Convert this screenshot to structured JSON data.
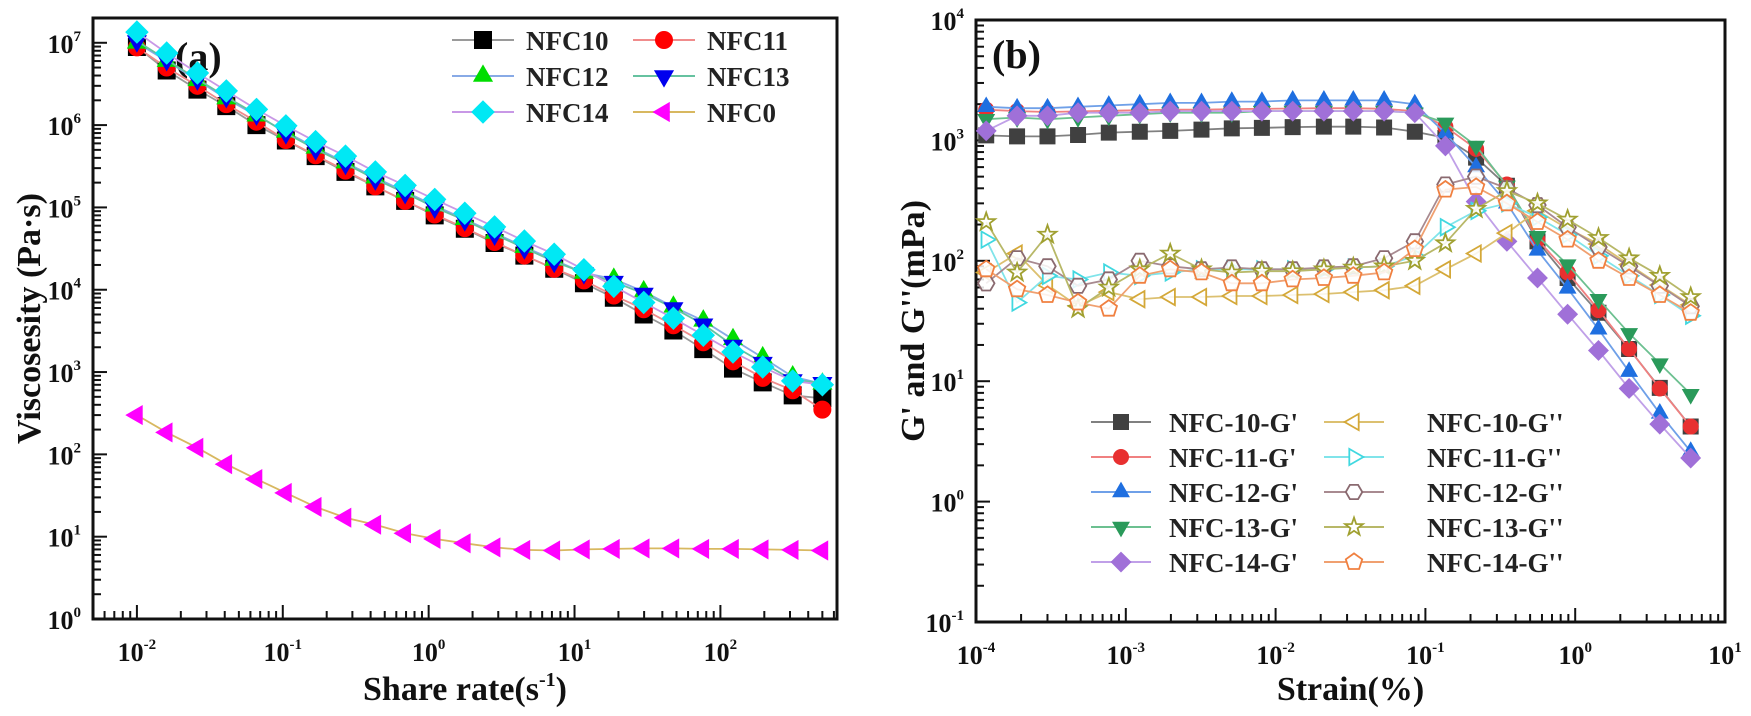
{
  "chart_data": [
    {
      "type": "line",
      "panel_label": "(a)",
      "xlabel": {
        "main": "Share rate(s",
        "sup": "-1",
        "end": ")"
      },
      "ylabel": "Viscosesity (Pa·s)",
      "xscale": "log",
      "yscale": "log",
      "xlim": [
        0.005,
        630
      ],
      "ylim": [
        1,
        20000000
      ],
      "x_ticks": [
        {
          "base": "10",
          "exp": "-2",
          "value": 0.01
        },
        {
          "base": "10",
          "exp": "-1",
          "value": 0.1
        },
        {
          "base": "10",
          "exp": "0",
          "value": 1
        },
        {
          "base": "10",
          "exp": "1",
          "value": 10
        },
        {
          "base": "10",
          "exp": "2",
          "value": 100
        }
      ],
      "y_ticks": [
        {
          "base": "10",
          "exp": "0",
          "value": 1
        },
        {
          "base": "10",
          "exp": "1",
          "value": 10
        },
        {
          "base": "10",
          "exp": "2",
          "value": 100
        },
        {
          "base": "10",
          "exp": "3",
          "value": 1000
        },
        {
          "base": "10",
          "exp": "4",
          "value": 10000
        },
        {
          "base": "10",
          "exp": "5",
          "value": 100000
        },
        {
          "base": "10",
          "exp": "6",
          "value": 1000000
        },
        {
          "base": "10",
          "exp": "7",
          "value": 10000000
        }
      ],
      "grid": false,
      "legend_placement": "top-right",
      "legend_columns": 2,
      "x": [
        0.01,
        0.016,
        0.026,
        0.041,
        0.066,
        0.105,
        0.168,
        0.269,
        0.431,
        0.69,
        1.1,
        1.77,
        2.83,
        4.53,
        7.26,
        11.6,
        18.6,
        29.8,
        47.6,
        76.3,
        122,
        195,
        313,
        500
      ],
      "series": [
        {
          "name": "NFC10",
          "marker": "square",
          "filled": true,
          "color": "#000000",
          "line_color": "#9a9a9a",
          "values": [
            8900000,
            4600000,
            2700000,
            1700000,
            1000000,
            650000,
            420000,
            270000,
            180000,
            120000,
            80000,
            55000,
            37000,
            26000,
            18000,
            12000,
            8000,
            5000,
            3200,
            1900,
            1100,
            750,
            520,
            480
          ]
        },
        {
          "name": "NFC11",
          "marker": "circle",
          "filled": true,
          "color": "#ff0000",
          "line_color": "#f08c8c",
          "values": [
            8800000,
            5000000,
            3000000,
            1800000,
            1100000,
            660000,
            430000,
            280000,
            180000,
            120000,
            82000,
            56000,
            38000,
            26000,
            18000,
            13000,
            8500,
            5800,
            3700,
            2300,
            1350,
            850,
            600,
            350
          ]
        },
        {
          "name": "NFC12",
          "marker": "triangle-up",
          "filled": true,
          "color": "#00dd00",
          "line_color": "#88aae6",
          "values": [
            10000000,
            6000000,
            3500000,
            2100000,
            1300000,
            830000,
            530000,
            350000,
            230000,
            155000,
            105000,
            72000,
            49000,
            33000,
            23000,
            16000,
            13500,
            9500,
            6200,
            4200,
            2500,
            1500,
            880,
            720
          ]
        },
        {
          "name": "NFC13",
          "marker": "triangle-down",
          "filled": true,
          "color": "#0000ee",
          "line_color": "#66c2a0",
          "values": [
            10500000,
            6200000,
            3600000,
            2200000,
            1350000,
            800000,
            510000,
            340000,
            220000,
            150000,
            100000,
            70000,
            47000,
            32000,
            22000,
            16000,
            12500,
            9000,
            6000,
            3800,
            2100,
            1300,
            800,
            740
          ]
        },
        {
          "name": "NFC14",
          "marker": "diamond",
          "filled": true,
          "color": "#00e8f4",
          "line_color": "#c898e6",
          "values": [
            13500000,
            7500000,
            4300000,
            2600000,
            1550000,
            980000,
            630000,
            420000,
            270000,
            185000,
            125000,
            85000,
            58000,
            39000,
            27000,
            17500,
            11000,
            7000,
            4500,
            2800,
            1750,
            1150,
            780,
            700
          ]
        },
        {
          "name": "NFC0",
          "marker": "triangle-left",
          "filled": true,
          "color": "#ff00ff",
          "line_color": "#d8b860",
          "values": [
            300,
            185,
            120,
            76,
            50,
            34,
            23,
            17,
            14,
            11,
            9.4,
            8.3,
            7.4,
            6.9,
            6.8,
            7.0,
            7.1,
            7.2,
            7.2,
            7.1,
            7.1,
            7.0,
            6.9,
            6.8
          ]
        }
      ]
    },
    {
      "type": "line",
      "panel_label": "(b)",
      "xlabel": {
        "main": "Strain(%)",
        "sup": "",
        "end": ""
      },
      "ylabel": "G' and G''(mPa)",
      "xscale": "log",
      "yscale": "log",
      "xlim": [
        0.0001,
        10
      ],
      "ylim": [
        0.1,
        10000
      ],
      "x_ticks": [
        {
          "base": "10",
          "exp": "-4",
          "value": 0.0001
        },
        {
          "base": "10",
          "exp": "-3",
          "value": 0.001
        },
        {
          "base": "10",
          "exp": "-2",
          "value": 0.01
        },
        {
          "base": "10",
          "exp": "-1",
          "value": 0.1
        },
        {
          "base": "10",
          "exp": "0",
          "value": 1
        },
        {
          "base": "10",
          "exp": "1",
          "value": 10
        }
      ],
      "y_ticks": [
        {
          "base": "10",
          "exp": "-1",
          "value": 0.1
        },
        {
          "base": "10",
          "exp": "0",
          "value": 1
        },
        {
          "base": "10",
          "exp": "1",
          "value": 10
        },
        {
          "base": "10",
          "exp": "2",
          "value": 100
        },
        {
          "base": "10",
          "exp": "3",
          "value": 1000
        },
        {
          "base": "10",
          "exp": "4",
          "value": 10000
        }
      ],
      "grid": false,
      "legend_placement": "bottom-center",
      "legend_columns": 2,
      "x": [
        0.000117,
        0.000188,
        0.0003,
        0.00048,
        0.00077,
        0.00124,
        0.00198,
        0.0032,
        0.0051,
        0.0081,
        0.013,
        0.021,
        0.033,
        0.053,
        0.085,
        0.136,
        0.218,
        0.35,
        0.56,
        0.89,
        1.43,
        2.29,
        3.67,
        5.9
      ],
      "series": [
        {
          "name": "NFC-10-G'",
          "marker": "square",
          "filled": true,
          "color": "#404040",
          "line_color": "#808080",
          "values": [
            1100,
            1080,
            1080,
            1110,
            1160,
            1180,
            1200,
            1230,
            1260,
            1270,
            1290,
            1300,
            1300,
            1280,
            1180,
            1050,
            720,
            420,
            145,
            72,
            37,
            18.5,
            8.8,
            4.2
          ]
        },
        {
          "name": "NFC-11-G'",
          "marker": "circle",
          "filled": true,
          "color": "#e83030",
          "line_color": "#f08080",
          "values": [
            1800,
            1750,
            1720,
            1740,
            1760,
            1780,
            1800,
            1800,
            1820,
            1830,
            1840,
            1850,
            1850,
            1830,
            1750,
            1300,
            850,
            430,
            150,
            80,
            39,
            18.6,
            8.7,
            4.2
          ]
        },
        {
          "name": "NFC-12-G'",
          "marker": "triangle-up",
          "filled": true,
          "color": "#1f6fe0",
          "line_color": "#6fa0e8",
          "values": [
            1900,
            1850,
            1850,
            1900,
            1950,
            2000,
            2050,
            2050,
            2100,
            2100,
            2150,
            2150,
            2150,
            2150,
            2000,
            1150,
            600,
            300,
            122,
            59,
            27,
            12,
            5.4,
            2.6
          ]
        },
        {
          "name": "NFC-13-G'",
          "marker": "triangle-down",
          "filled": true,
          "color": "#2a9a5a",
          "line_color": "#6cc090",
          "values": [
            1500,
            1550,
            1500,
            1550,
            1600,
            1650,
            1700,
            1700,
            1700,
            1750,
            1750,
            1750,
            1750,
            1750,
            1700,
            1400,
            900,
            420,
            160,
            93,
            48,
            25,
            14,
            7.8
          ]
        },
        {
          "name": "NFC-14-G'",
          "marker": "diamond",
          "filled": true,
          "color": "#a070d8",
          "line_color": "#c0a0e8",
          "values": [
            1200,
            1600,
            1600,
            1700,
            1700,
            1700,
            1750,
            1750,
            1750,
            1750,
            1750,
            1750,
            1750,
            1750,
            1700,
            900,
            310,
            145,
            72,
            36,
            18,
            8.7,
            4.4,
            2.3
          ]
        },
        {
          "name": "NFC-10-G''",
          "marker": "triangle-left",
          "filled": false,
          "color": "#d4a838",
          "line_color": "#dcc070",
          "values": [
            80,
            115,
            63,
            42,
            55,
            48,
            50,
            50,
            51,
            51,
            52,
            53,
            55,
            57,
            62,
            85,
            115,
            170,
            260,
            185,
            138,
            93,
            63,
            43
          ]
        },
        {
          "name": "NFC-11-G''",
          "marker": "triangle-right",
          "filled": false,
          "color": "#40d8e0",
          "line_color": "#80e4ea",
          "values": [
            150,
            45,
            75,
            70,
            80,
            75,
            80,
            85,
            85,
            85,
            85,
            85,
            88,
            90,
            110,
            190,
            260,
            300,
            230,
            165,
            110,
            75,
            52,
            35
          ]
        },
        {
          "name": "NFC-12-G''",
          "marker": "hexagon",
          "filled": false,
          "color": "#8a6a70",
          "line_color": "#a88a90",
          "values": [
            65,
            105,
            90,
            62,
            70,
            100,
            90,
            85,
            88,
            85,
            85,
            88,
            90,
            105,
            145,
            430,
            500,
            400,
            290,
            190,
            130,
            90,
            62,
            42
          ]
        },
        {
          "name": "NFC-13-G''",
          "marker": "star",
          "filled": false,
          "color": "#a0a030",
          "line_color": "#b8b868",
          "values": [
            210,
            80,
            165,
            40,
            60,
            85,
            115,
            85,
            80,
            82,
            82,
            85,
            88,
            90,
            100,
            140,
            270,
            380,
            300,
            220,
            155,
            105,
            75,
            50
          ]
        },
        {
          "name": "NFC-14-G''",
          "marker": "pentagon",
          "filled": false,
          "color": "#f08040",
          "line_color": "#f0a070",
          "values": [
            85,
            58,
            52,
            45,
            40,
            75,
            85,
            80,
            65,
            65,
            70,
            72,
            75,
            80,
            125,
            390,
            410,
            300,
            210,
            150,
            100,
            72,
            52,
            37
          ]
        }
      ]
    }
  ]
}
